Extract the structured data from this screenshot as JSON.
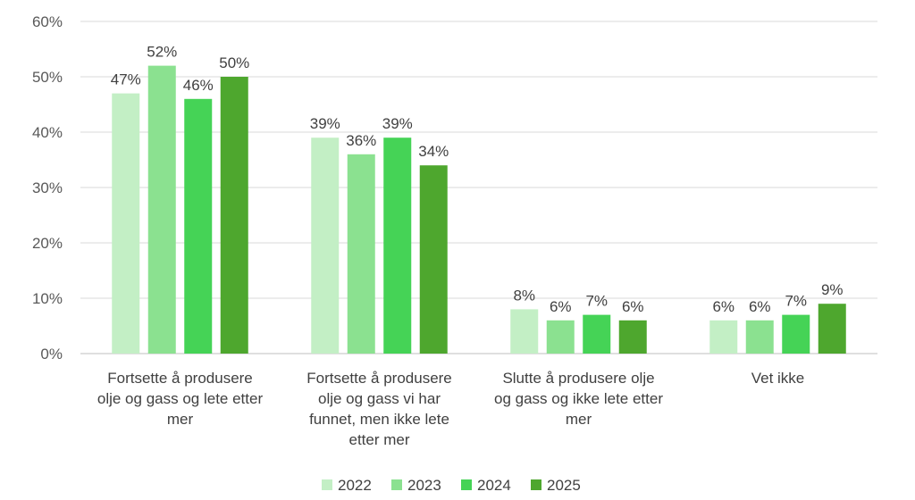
{
  "chart_data": {
    "type": "bar",
    "categories": [
      "Fortsette å produsere olje og gass og lete etter mer",
      "Fortsette å produsere olje og gass vi har funnet, men ikke lete etter mer",
      "Slutte å produsere olje og gass og ikke lete etter mer",
      "Vet ikke"
    ],
    "category_lines": [
      [
        "Fortsette å produsere",
        "olje og gass og lete etter",
        "mer"
      ],
      [
        "Fortsette å produsere",
        "olje og gass vi har",
        "funnet, men ikke lete",
        "etter mer"
      ],
      [
        "Slutte å produsere olje",
        "og gass og ikke lete etter",
        "mer"
      ],
      [
        "Vet ikke"
      ]
    ],
    "series": [
      {
        "name": "2022",
        "color": "#c3efc5",
        "values": [
          47,
          39,
          8,
          6
        ],
        "labels": [
          "47%",
          "39%",
          "8%",
          "6%"
        ]
      },
      {
        "name": "2023",
        "color": "#8be190",
        "values": [
          52,
          36,
          6,
          6
        ],
        "labels": [
          "52%",
          "36%",
          "6%",
          "6%"
        ]
      },
      {
        "name": "2024",
        "color": "#45d356",
        "values": [
          46,
          39,
          7,
          7
        ],
        "labels": [
          "46%",
          "39%",
          "7%",
          "7%"
        ]
      },
      {
        "name": "2025",
        "color": "#4ea72e",
        "values": [
          50,
          34,
          6,
          9
        ],
        "labels": [
          "50%",
          "34%",
          "6%",
          "9%"
        ]
      }
    ],
    "y_ticks": [
      "0%",
      "10%",
      "20%",
      "30%",
      "40%",
      "50%",
      "60%"
    ],
    "ylim": [
      0,
      60
    ],
    "grid": true,
    "legend_position": "bottom",
    "title": "",
    "xlabel": "",
    "ylabel": ""
  }
}
